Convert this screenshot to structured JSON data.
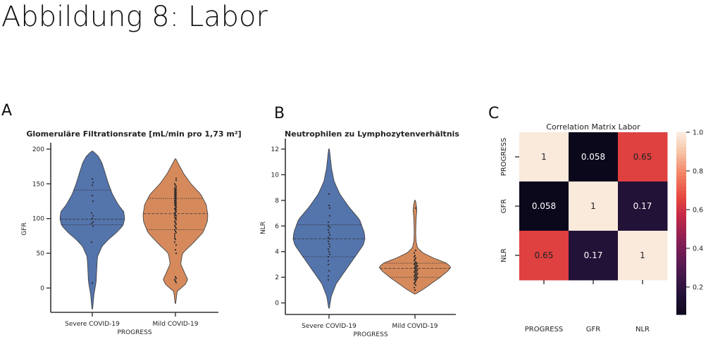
{
  "figure": {
    "title": "Abbildung 8: Labor",
    "panel_labels": [
      "A",
      "B",
      "C"
    ]
  },
  "chart_data": [
    {
      "type": "violin",
      "title": "Glomeruläre Filtrationsrate [mL/min pro 1,73 m²]",
      "xlabel": "PROGRESS",
      "ylabel": "GFR",
      "categories": [
        "Severe COVID-19",
        "Mild COVID-19"
      ],
      "yticks": [
        0,
        50,
        100,
        150,
        200
      ],
      "ylim": [
        -35,
        205
      ],
      "colors": [
        "#5474ac",
        "#d68a5c"
      ],
      "violins": [
        {
          "name": "Severe COVID-19",
          "range": [
            -30,
            197
          ],
          "quartiles": [
            91,
            99,
            141
          ],
          "profile": [
            [
              -30,
              0.01
            ],
            [
              -10,
              0.05
            ],
            [
              10,
              0.12
            ],
            [
              30,
              0.14
            ],
            [
              45,
              0.16
            ],
            [
              60,
              0.3
            ],
            [
              70,
              0.5
            ],
            [
              80,
              0.75
            ],
            [
              90,
              0.95
            ],
            [
              100,
              1.0
            ],
            [
              110,
              0.97
            ],
            [
              120,
              0.8
            ],
            [
              135,
              0.62
            ],
            [
              150,
              0.5
            ],
            [
              165,
              0.4
            ],
            [
              180,
              0.3
            ],
            [
              190,
              0.18
            ],
            [
              197,
              0.02
            ]
          ],
          "points": [
            7,
            66,
            89,
            93,
            95,
            100,
            104,
            108,
            125,
            133,
            148,
            152,
            157
          ]
        },
        {
          "name": "Mild COVID-19",
          "range": [
            -22,
            186
          ],
          "quartiles": [
            84,
            107,
            129
          ],
          "profile": [
            [
              -22,
              0.01
            ],
            [
              -5,
              0.05
            ],
            [
              5,
              0.3
            ],
            [
              12,
              0.38
            ],
            [
              20,
              0.3
            ],
            [
              35,
              0.16
            ],
            [
              50,
              0.22
            ],
            [
              65,
              0.55
            ],
            [
              80,
              0.85
            ],
            [
              95,
              0.98
            ],
            [
              105,
              1.0
            ],
            [
              120,
              0.95
            ],
            [
              135,
              0.78
            ],
            [
              150,
              0.48
            ],
            [
              165,
              0.25
            ],
            [
              178,
              0.1
            ],
            [
              186,
              0.01
            ]
          ],
          "points": [
            8,
            10,
            12,
            14,
            16,
            50,
            55,
            62,
            66,
            70,
            72,
            75,
            78,
            80,
            82,
            84,
            86,
            88,
            90,
            92,
            94,
            96,
            98,
            100,
            101,
            102,
            104,
            105,
            106,
            108,
            109,
            110,
            112,
            113,
            114,
            115,
            116,
            118,
            119,
            120,
            121,
            122,
            123,
            124,
            125,
            126,
            127,
            128,
            129,
            130,
            131,
            132,
            133,
            134,
            135,
            136,
            137,
            138,
            139,
            140,
            141,
            142,
            143,
            144,
            146,
            148,
            150,
            155,
            158
          ]
        }
      ]
    },
    {
      "type": "violin",
      "title": "Neutrophilen zu Lymphozytenverhältnis",
      "xlabel": "PROGRESS",
      "ylabel": "NLR",
      "categories": [
        "Severe COVID-19",
        "Mild COVID-19"
      ],
      "yticks": [
        0,
        2,
        4,
        6,
        8,
        10,
        12
      ],
      "ylim": [
        -0.9,
        12.6
      ],
      "colors": [
        "#5474ac",
        "#d68a5c"
      ],
      "violins": [
        {
          "name": "Severe COVID-19",
          "range": [
            -0.4,
            12.0
          ],
          "quartiles": [
            3.6,
            5.0,
            6.1
          ],
          "profile": [
            [
              -0.4,
              0.01
            ],
            [
              0.5,
              0.06
            ],
            [
              1.5,
              0.2
            ],
            [
              2.5,
              0.45
            ],
            [
              3.5,
              0.7
            ],
            [
              4.5,
              0.95
            ],
            [
              5.0,
              1.0
            ],
            [
              5.5,
              0.98
            ],
            [
              6.5,
              0.85
            ],
            [
              7.5,
              0.55
            ],
            [
              8.5,
              0.3
            ],
            [
              9.5,
              0.14
            ],
            [
              10.5,
              0.07
            ],
            [
              11.5,
              0.03
            ],
            [
              12.0,
              0.01
            ]
          ],
          "points": [
            1.8,
            2.1,
            2.5,
            3.0,
            3.3,
            3.6,
            3.8,
            4.0,
            4.2,
            4.4,
            4.6,
            4.8,
            5.0,
            5.1,
            5.3,
            5.5,
            5.7,
            5.9,
            6.0,
            6.3,
            6.8,
            7.4,
            7.6,
            8.5
          ]
        },
        {
          "name": "Mild COVID-19",
          "range": [
            0.7,
            8.0
          ],
          "quartiles": [
            2.0,
            2.7,
            3.1
          ],
          "profile": [
            [
              0.7,
              0.02
            ],
            [
              1.1,
              0.25
            ],
            [
              1.5,
              0.45
            ],
            [
              2.0,
              0.7
            ],
            [
              2.5,
              0.92
            ],
            [
              2.8,
              1.0
            ],
            [
              3.1,
              0.88
            ],
            [
              3.5,
              0.52
            ],
            [
              3.9,
              0.22
            ],
            [
              4.3,
              0.07
            ],
            [
              4.8,
              0.03
            ],
            [
              5.5,
              0.02
            ],
            [
              6.5,
              0.03
            ],
            [
              7.2,
              0.05
            ],
            [
              7.6,
              0.04
            ],
            [
              8.0,
              0.01
            ]
          ],
          "points": [
            1.0,
            1.2,
            1.4,
            1.5,
            1.6,
            1.7,
            1.8,
            1.8,
            1.9,
            1.9,
            2.0,
            2.0,
            2.1,
            2.1,
            2.2,
            2.2,
            2.3,
            2.3,
            2.4,
            2.4,
            2.5,
            2.5,
            2.6,
            2.6,
            2.7,
            2.7,
            2.8,
            2.8,
            2.9,
            2.9,
            3.0,
            3.0,
            3.1,
            3.1,
            3.2,
            3.3,
            3.4,
            3.5,
            3.6,
            3.7,
            3.9,
            4.1,
            7.4
          ]
        }
      ]
    },
    {
      "type": "heatmap",
      "title": "Correlation Matrix Labor",
      "labels": [
        "PROGRESS",
        "GFR",
        "NLR"
      ],
      "values": [
        [
          1,
          0.058,
          0.65
        ],
        [
          0.058,
          1,
          0.17
        ],
        [
          0.65,
          0.17,
          1
        ]
      ],
      "cell_text": [
        [
          "1",
          "0.058",
          "0.65"
        ],
        [
          "0.058",
          "1",
          "0.17"
        ],
        [
          "0.65",
          "0.17",
          "1"
        ]
      ],
      "colormap": "rocket",
      "colorbar": {
        "range": [
          0.058,
          1.0
        ],
        "ticks": [
          0.2,
          0.4,
          0.6,
          0.8,
          1.0
        ],
        "tick_labels": [
          "0.2",
          "0.4",
          "0.6",
          "0.8",
          "1.0"
        ]
      }
    }
  ]
}
